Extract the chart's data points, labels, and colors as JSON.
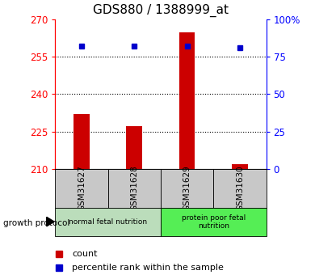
{
  "title": "GDS880 / 1388999_at",
  "samples": [
    "GSM31627",
    "GSM31628",
    "GSM31629",
    "GSM31630"
  ],
  "counts": [
    232,
    227,
    265,
    212
  ],
  "percentiles": [
    82,
    82,
    82,
    81
  ],
  "ylim_left": [
    210,
    270
  ],
  "ylim_right": [
    0,
    100
  ],
  "yticks_left": [
    210,
    225,
    240,
    255,
    270
  ],
  "yticks_right": [
    0,
    25,
    50,
    75,
    100
  ],
  "yticklabels_right": [
    "0",
    "25",
    "50",
    "75",
    "100%"
  ],
  "bar_color": "#cc0000",
  "dot_color": "#0000cc",
  "group1_label": "normal fetal nutrition",
  "group2_label": "protein poor fetal\nnutrition",
  "group_label": "growth protocol",
  "group1_bg": "#bbddbb",
  "group2_bg": "#55ee55",
  "xlabel_bg": "#c8c8c8",
  "legend_count_label": "count",
  "legend_pct_label": "percentile rank within the sample",
  "title_fontsize": 11,
  "tick_fontsize": 8.5,
  "bar_width": 0.3
}
